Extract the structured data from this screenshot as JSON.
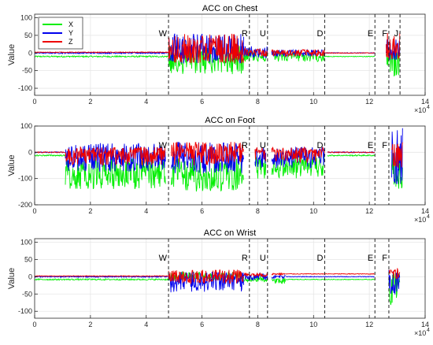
{
  "figure": {
    "colors": {
      "X": "#00ee00",
      "Y": "#0000ee",
      "Z": "#ee0000",
      "grid": "#e6e6e6",
      "axis": "#262626",
      "vline": "#262626"
    }
  },
  "chart_data": [
    {
      "type": "line",
      "title": "ACC on Chest",
      "ylabel": "Value",
      "xlabel": "",
      "xlim": [
        0,
        140000
      ],
      "ylim": [
        -120,
        110
      ],
      "xticks": [
        0,
        20000,
        40000,
        60000,
        80000,
        100000,
        120000,
        140000
      ],
      "xtick_labels": [
        "0",
        "2",
        "4",
        "6",
        "8",
        "10",
        "12",
        "14"
      ],
      "yticks": [
        -100,
        -50,
        0,
        50,
        100
      ],
      "x_exponent_label": "×10",
      "x_exponent_power": "4",
      "grid": true,
      "legend": {
        "position": "top-left",
        "entries": [
          "X",
          "Y",
          "Z"
        ]
      },
      "activity_markers": [
        {
          "label": "W",
          "x": 48000
        },
        {
          "label": "R",
          "x": 77000
        },
        {
          "label": "U",
          "x": 83500
        },
        {
          "label": "D",
          "x": 104000
        },
        {
          "label": "E",
          "x": 122000
        },
        {
          "label": "F",
          "x": 127000
        },
        {
          "label": "J",
          "x": 131000
        }
      ],
      "series": [
        {
          "name": "X",
          "segments": [
            {
              "x": [
                0,
                48000
              ],
              "mid": -10,
              "lo": -12,
              "hi": -8
            },
            {
              "x": [
                48000,
                75000
              ],
              "mid": -15,
              "lo": -60,
              "hi": 20
            },
            {
              "x": [
                75000,
                83500
              ],
              "mid": -5,
              "lo": -25,
              "hi": 10
            },
            {
              "x": [
                85000,
                104000
              ],
              "mid": -8,
              "lo": -25,
              "hi": 5
            },
            {
              "x": [
                104000,
                122000
              ],
              "mid": -10,
              "lo": -11,
              "hi": -9
            },
            {
              "x": [
                126000,
                131000
              ],
              "mid": -10,
              "lo": -70,
              "hi": 20
            }
          ]
        },
        {
          "name": "Y",
          "segments": [
            {
              "x": [
                0,
                48000
              ],
              "mid": 0,
              "lo": -2,
              "hi": 2
            },
            {
              "x": [
                48000,
                75000
              ],
              "mid": 5,
              "lo": -30,
              "hi": 55
            },
            {
              "x": [
                75000,
                83500
              ],
              "mid": 0,
              "lo": -15,
              "hi": 20
            },
            {
              "x": [
                85000,
                104000
              ],
              "mid": 0,
              "lo": -10,
              "hi": 10
            },
            {
              "x": [
                104000,
                122000
              ],
              "mid": 0,
              "lo": -1,
              "hi": 1
            },
            {
              "x": [
                126000,
                131000
              ],
              "mid": 0,
              "lo": -20,
              "hi": 40
            }
          ]
        },
        {
          "name": "Z",
          "segments": [
            {
              "x": [
                0,
                48000
              ],
              "mid": 2,
              "lo": 1,
              "hi": 3
            },
            {
              "x": [
                48000,
                75000
              ],
              "mid": 2,
              "lo": -30,
              "hi": 55
            },
            {
              "x": [
                75000,
                83500
              ],
              "mid": 0,
              "lo": -10,
              "hi": 15
            },
            {
              "x": [
                85000,
                104000
              ],
              "mid": 0,
              "lo": -10,
              "hi": 10
            },
            {
              "x": [
                104000,
                122000
              ],
              "mid": 0,
              "lo": -1,
              "hi": 1
            },
            {
              "x": [
                126000,
                131000
              ],
              "mid": 5,
              "lo": -20,
              "hi": 60
            }
          ]
        }
      ]
    },
    {
      "type": "line",
      "title": "ACC on Foot",
      "ylabel": "Value",
      "xlabel": "",
      "xlim": [
        0,
        140000
      ],
      "ylim": [
        -200,
        100
      ],
      "xticks": [
        0,
        20000,
        40000,
        60000,
        80000,
        100000,
        120000,
        140000
      ],
      "xtick_labels": [
        "0",
        "2",
        "4",
        "6",
        "8",
        "10",
        "12",
        "14"
      ],
      "yticks": [
        -200,
        -100,
        0,
        100
      ],
      "x_exponent_label": "×10",
      "x_exponent_power": "4",
      "grid": true,
      "activity_markers": [
        {
          "label": "W",
          "x": 48000
        },
        {
          "label": "R",
          "x": 77000
        },
        {
          "label": "U",
          "x": 83500
        },
        {
          "label": "D",
          "x": 104000
        },
        {
          "label": "E",
          "x": 122000
        },
        {
          "label": "F",
          "x": 127000
        }
      ],
      "series": [
        {
          "name": "X",
          "segments": [
            {
              "x": [
                0,
                11000
              ],
              "mid": -12,
              "lo": -15,
              "hi": -10
            },
            {
              "x": [
                11000,
                47000
              ],
              "mid": -80,
              "lo": -140,
              "hi": -20
            },
            {
              "x": [
                49000,
                75000
              ],
              "mid": -90,
              "lo": -150,
              "hi": -20
            },
            {
              "x": [
                79000,
                83000
              ],
              "mid": -50,
              "lo": -100,
              "hi": 0
            },
            {
              "x": [
                85000,
                104000
              ],
              "mid": -50,
              "lo": -100,
              "hi": -10
            },
            {
              "x": [
                105000,
                122000
              ],
              "mid": -12,
              "lo": -15,
              "hi": -10
            },
            {
              "x": [
                128000,
                132000
              ],
              "mid": -60,
              "lo": -140,
              "hi": 0
            }
          ]
        },
        {
          "name": "Y",
          "segments": [
            {
              "x": [
                0,
                11000
              ],
              "mid": 0,
              "lo": -2,
              "hi": 2
            },
            {
              "x": [
                11000,
                47000
              ],
              "mid": -20,
              "lo": -75,
              "hi": 35
            },
            {
              "x": [
                49000,
                75000
              ],
              "mid": -20,
              "lo": -80,
              "hi": 40
            },
            {
              "x": [
                79000,
                83000
              ],
              "mid": -20,
              "lo": -60,
              "hi": 20
            },
            {
              "x": [
                85000,
                104000
              ],
              "mid": -20,
              "lo": -60,
              "hi": 20
            },
            {
              "x": [
                105000,
                122000
              ],
              "mid": 0,
              "lo": -2,
              "hi": 2
            },
            {
              "x": [
                128000,
                132000
              ],
              "mid": -20,
              "lo": -130,
              "hi": 100
            }
          ]
        },
        {
          "name": "Z",
          "segments": [
            {
              "x": [
                0,
                11000
              ],
              "mid": 0,
              "lo": -2,
              "hi": 2
            },
            {
              "x": [
                11000,
                47000
              ],
              "mid": -5,
              "lo": -50,
              "hi": 20
            },
            {
              "x": [
                49000,
                75000
              ],
              "mid": 0,
              "lo": -50,
              "hi": 40
            },
            {
              "x": [
                79000,
                83000
              ],
              "mid": 0,
              "lo": -40,
              "hi": 20
            },
            {
              "x": [
                85000,
                104000
              ],
              "mid": 0,
              "lo": -40,
              "hi": 20
            },
            {
              "x": [
                105000,
                122000
              ],
              "mid": 0,
              "lo": -2,
              "hi": 2
            },
            {
              "x": [
                128000,
                132000
              ],
              "mid": -10,
              "lo": -60,
              "hi": 40
            }
          ]
        }
      ]
    },
    {
      "type": "line",
      "title": "ACC on Wrist",
      "ylabel": "Value",
      "xlabel": "",
      "xlim": [
        0,
        140000
      ],
      "ylim": [
        -120,
        110
      ],
      "xticks": [
        0,
        20000,
        40000,
        60000,
        80000,
        100000,
        120000,
        140000
      ],
      "xtick_labels": [
        "0",
        "2",
        "4",
        "6",
        "8",
        "10",
        "12",
        "14"
      ],
      "yticks": [
        -100,
        -50,
        0,
        50,
        100
      ],
      "x_exponent_label": "×10",
      "x_exponent_power": "4",
      "grid": true,
      "activity_markers": [
        {
          "label": "W",
          "x": 48000
        },
        {
          "label": "R",
          "x": 77000
        },
        {
          "label": "U",
          "x": 83500
        },
        {
          "label": "D",
          "x": 104000
        },
        {
          "label": "E",
          "x": 122000
        },
        {
          "label": "F",
          "x": 127000
        }
      ],
      "series": [
        {
          "name": "X",
          "segments": [
            {
              "x": [
                0,
                48000
              ],
              "mid": -8,
              "lo": -10,
              "hi": -6
            },
            {
              "x": [
                48000,
                75000
              ],
              "mid": 0,
              "lo": -10,
              "hi": 15
            },
            {
              "x": [
                75000,
                83500
              ],
              "mid": -8,
              "lo": -15,
              "hi": 0
            },
            {
              "x": [
                85000,
                90000
              ],
              "mid": -10,
              "lo": -20,
              "hi": -5
            },
            {
              "x": [
                90000,
                122000
              ],
              "mid": -8,
              "lo": -9,
              "hi": -7
            },
            {
              "x": [
                127000,
                131000
              ],
              "mid": -30,
              "lo": -85,
              "hi": 10
            }
          ]
        },
        {
          "name": "Y",
          "segments": [
            {
              "x": [
                0,
                48000
              ],
              "mid": 0,
              "lo": -2,
              "hi": 2
            },
            {
              "x": [
                48000,
                75000
              ],
              "mid": -15,
              "lo": -45,
              "hi": 15
            },
            {
              "x": [
                75000,
                83500
              ],
              "mid": 0,
              "lo": -10,
              "hi": 10
            },
            {
              "x": [
                85000,
                90000
              ],
              "mid": 0,
              "lo": -5,
              "hi": 5
            },
            {
              "x": [
                90000,
                122000
              ],
              "mid": 0,
              "lo": -1,
              "hi": 1
            },
            {
              "x": [
                127000,
                131000
              ],
              "mid": -20,
              "lo": -60,
              "hi": 25
            }
          ]
        },
        {
          "name": "Z",
          "segments": [
            {
              "x": [
                0,
                48000
              ],
              "mid": 2,
              "lo": 1,
              "hi": 3
            },
            {
              "x": [
                48000,
                75000
              ],
              "mid": 0,
              "lo": -20,
              "hi": 20
            },
            {
              "x": [
                75000,
                83500
              ],
              "mid": 5,
              "lo": 0,
              "hi": 10
            },
            {
              "x": [
                85000,
                90000
              ],
              "mid": 8,
              "lo": 5,
              "hi": 10
            },
            {
              "x": [
                90000,
                122000
              ],
              "mid": 8,
              "lo": 7,
              "hi": 9
            },
            {
              "x": [
                127000,
                131000
              ],
              "mid": 5,
              "lo": -20,
              "hi": 25
            }
          ]
        }
      ]
    }
  ]
}
